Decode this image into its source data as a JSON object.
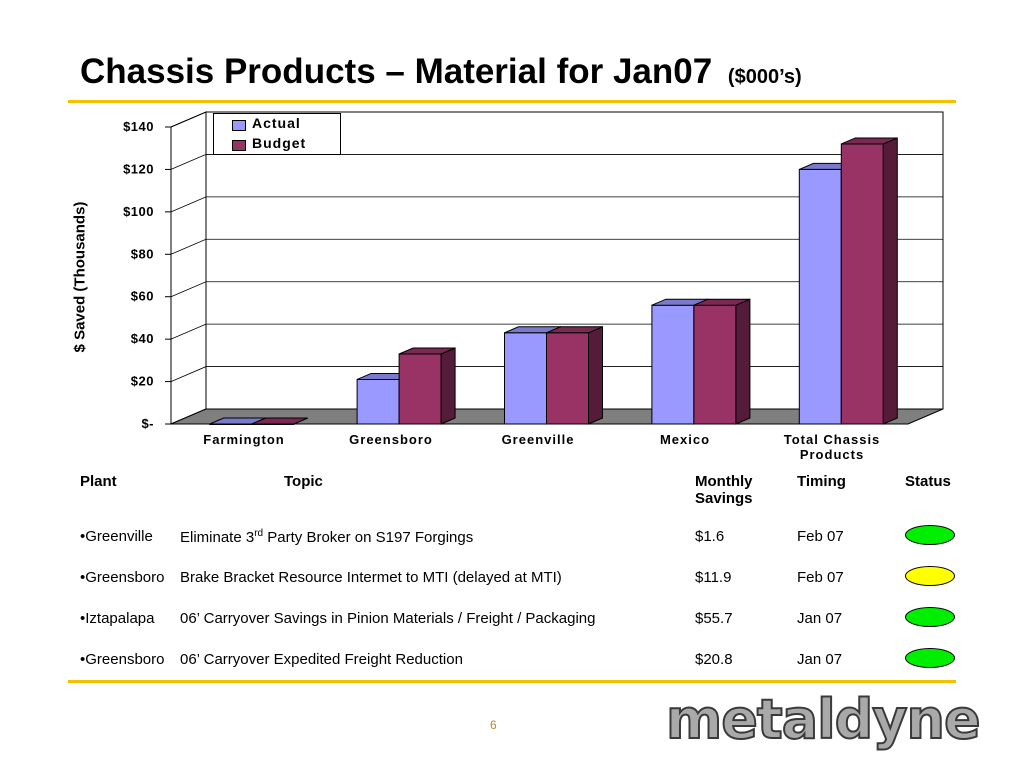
{
  "slide": {
    "title": "Chassis Products – Material for Jan07",
    "title_suffix": "($000’s)",
    "page_number": "6",
    "logo_text": "metaldyne",
    "accent_color": "#f2c200"
  },
  "chart_data": {
    "type": "bar",
    "title": "",
    "xlabel": "",
    "ylabel": "$ Saved (Thousands)",
    "categories": [
      "Farmington",
      "Greensboro",
      "Greenville",
      "Mexico",
      "Total Chassis Products"
    ],
    "series": [
      {
        "name": "Actual",
        "values": [
          0,
          21,
          43,
          56,
          120
        ],
        "color": "#9999ff"
      },
      {
        "name": "Budget",
        "values": [
          0,
          33,
          43,
          56,
          132
        ],
        "color": "#993366"
      }
    ],
    "ylim": [
      0,
      140
    ],
    "yticks": [
      0,
      20,
      40,
      60,
      80,
      100,
      120,
      140
    ],
    "ytick_labels": [
      "$-",
      "$20",
      "$40",
      "$60",
      "$80",
      "$100",
      "$120",
      "$140"
    ],
    "grid": true,
    "legend_position": "top-left",
    "style": "3d clustered column"
  },
  "table": {
    "headers": {
      "plant": "Plant",
      "topic": "Topic",
      "savings": "Monthly Savings",
      "timing": "Timing",
      "status": "Status"
    },
    "rows": [
      {
        "plant": "•Greenville",
        "topic": "Eliminate 3",
        "topic_sup": "rd",
        "topic_rest": " Party Broker on S197 Forgings",
        "savings": "$1.6",
        "timing": "Feb 07",
        "status_color": "#00ee00"
      },
      {
        "plant": "•Greensboro",
        "topic": "Brake Bracket Resource Intermet to MTI (delayed at MTI)",
        "topic_sup": "",
        "topic_rest": "",
        "savings": "$11.9",
        "timing": "Feb 07",
        "status_color": "#ffff00"
      },
      {
        "plant": "•Iztapalapa",
        "topic": "06’ Carryover Savings in Pinion Materials / Freight / Packaging",
        "topic_sup": "",
        "topic_rest": "",
        "savings": "$55.7",
        "timing": "Jan 07",
        "status_color": "#00ee00"
      },
      {
        "plant": "•Greensboro",
        "topic": "06’ Carryover Expedited Freight Reduction",
        "topic_sup": "",
        "topic_rest": "",
        "savings": "$20.8",
        "timing": "Jan 07",
        "status_color": "#00ee00"
      }
    ]
  }
}
